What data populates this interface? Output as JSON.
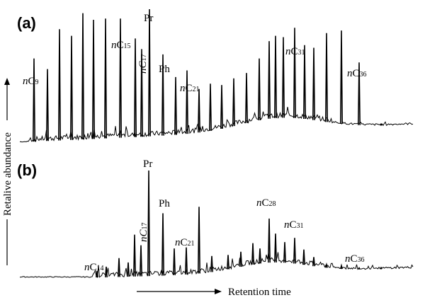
{
  "chart_data": [
    {
      "type": "line",
      "panel_label": "(a)",
      "xlabel": "Retention time",
      "ylabel": "Retalive abundance",
      "peak_labels": [
        {
          "prefix": "n",
          "main": "C",
          "sub": "9"
        },
        {
          "prefix": "n",
          "main": "C",
          "sub": "15"
        },
        {
          "prefix": "",
          "main": "nC",
          "sub": "17"
        },
        {
          "prefix": "",
          "main": "Pr",
          "sub": ""
        },
        {
          "prefix": "",
          "main": "Ph",
          "sub": ""
        },
        {
          "prefix": "n",
          "main": "C",
          "sub": "21"
        },
        {
          "prefix": "n",
          "main": "C",
          "sub": "31"
        },
        {
          "prefix": "n",
          "main": "C",
          "sub": "36"
        }
      ],
      "peaks": [
        {
          "rt": 48,
          "h": 0.63
        },
        {
          "rt": 67,
          "h": 0.55
        },
        {
          "rt": 84,
          "h": 0.85
        },
        {
          "rt": 101,
          "h": 0.8
        },
        {
          "rt": 117,
          "h": 0.97
        },
        {
          "rt": 132,
          "h": 0.92
        },
        {
          "rt": 149,
          "h": 0.93
        },
        {
          "rt": 170,
          "h": 0.93
        },
        {
          "rt": 191,
          "h": 0.78
        },
        {
          "rt": 200,
          "h": 0.7
        },
        {
          "rt": 211,
          "h": 1.0
        },
        {
          "rt": 230,
          "h": 0.66
        },
        {
          "rt": 248,
          "h": 0.49
        },
        {
          "rt": 264,
          "h": 0.54
        },
        {
          "rt": 281,
          "h": 0.4
        },
        {
          "rt": 297,
          "h": 0.44
        },
        {
          "rt": 313,
          "h": 0.43
        },
        {
          "rt": 330,
          "h": 0.48
        },
        {
          "rt": 348,
          "h": 0.52
        },
        {
          "rt": 366,
          "h": 0.63
        },
        {
          "rt": 380,
          "h": 0.76
        },
        {
          "rt": 389,
          "h": 0.8
        },
        {
          "rt": 400,
          "h": 0.79
        },
        {
          "rt": 416,
          "h": 0.86
        },
        {
          "rt": 430,
          "h": 0.73
        },
        {
          "rt": 443,
          "h": 0.71
        },
        {
          "rt": 461,
          "h": 0.82
        },
        {
          "rt": 482,
          "h": 0.84
        },
        {
          "rt": 507,
          "h": 0.6
        },
        {
          "rt": 538,
          "h": 0.1
        }
      ]
    },
    {
      "type": "line",
      "panel_label": "(b)",
      "xlabel": "Retention time",
      "ylabel": "Retalive abundance",
      "peak_labels": [
        {
          "prefix": "n",
          "main": "C",
          "sub": "14"
        },
        {
          "prefix": "",
          "main": "nC",
          "sub": "17"
        },
        {
          "prefix": "",
          "main": "Pr",
          "sub": ""
        },
        {
          "prefix": "",
          "main": "Ph",
          "sub": ""
        },
        {
          "prefix": "n",
          "main": "C",
          "sub": "21"
        },
        {
          "prefix": "n",
          "main": "C",
          "sub": "28"
        },
        {
          "prefix": "n",
          "main": "C",
          "sub": "31"
        },
        {
          "prefix": "n",
          "main": "C",
          "sub": "36"
        }
      ],
      "peaks": [
        {
          "rt": 137,
          "h": 0.06
        },
        {
          "rt": 150,
          "h": 0.1
        },
        {
          "rt": 168,
          "h": 0.18
        },
        {
          "rt": 181,
          "h": 0.14
        },
        {
          "rt": 190,
          "h": 0.4
        },
        {
          "rt": 199,
          "h": 0.3
        },
        {
          "rt": 210,
          "h": 1.0
        },
        {
          "rt": 230,
          "h": 0.6
        },
        {
          "rt": 246,
          "h": 0.27
        },
        {
          "rt": 263,
          "h": 0.28
        },
        {
          "rt": 281,
          "h": 0.66
        },
        {
          "rt": 299,
          "h": 0.2
        },
        {
          "rt": 322,
          "h": 0.21
        },
        {
          "rt": 340,
          "h": 0.24
        },
        {
          "rt": 357,
          "h": 0.32
        },
        {
          "rt": 367,
          "h": 0.27
        },
        {
          "rt": 380,
          "h": 0.55
        },
        {
          "rt": 389,
          "h": 0.41
        },
        {
          "rt": 402,
          "h": 0.33
        },
        {
          "rt": 416,
          "h": 0.37
        },
        {
          "rt": 429,
          "h": 0.26
        },
        {
          "rt": 443,
          "h": 0.19
        },
        {
          "rt": 461,
          "h": 0.12
        },
        {
          "rt": 482,
          "h": 0.11
        },
        {
          "rt": 507,
          "h": 0.06
        },
        {
          "rt": 538,
          "h": 0.02
        }
      ]
    }
  ]
}
